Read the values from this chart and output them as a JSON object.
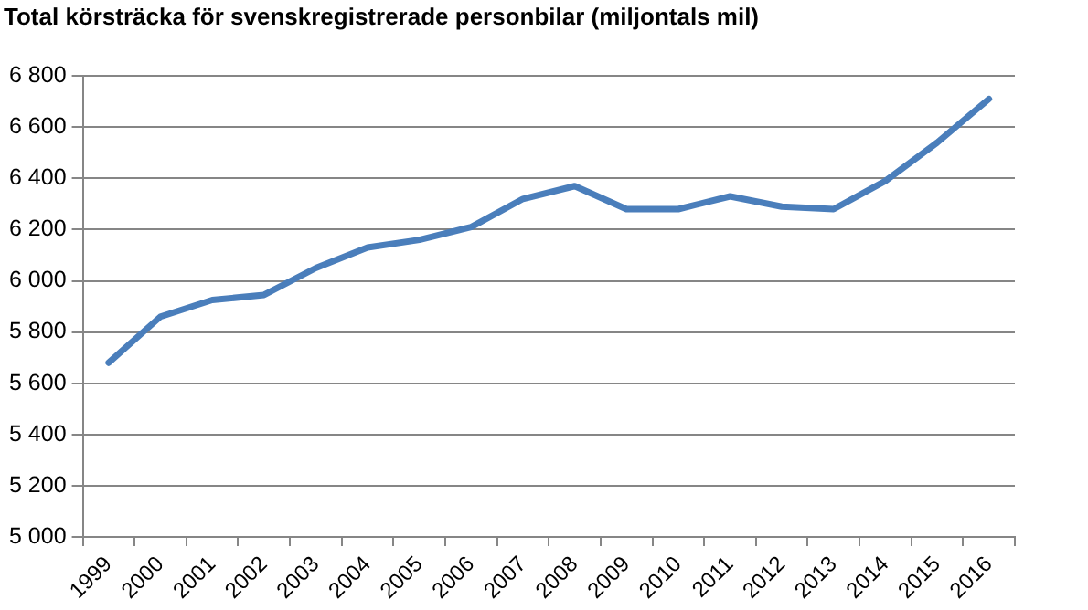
{
  "chart_data": {
    "type": "line",
    "title": "Total körsträcka för svenskregistrerade personbilar (miljontals mil)",
    "categories": [
      "1999",
      "2000",
      "2001",
      "2002",
      "2003",
      "2004",
      "2005",
      "2006",
      "2007",
      "2008",
      "2009",
      "2010",
      "2011",
      "2012",
      "2013",
      "2014",
      "2015",
      "2016"
    ],
    "series": [
      {
        "color": "#4a7ebb",
        "values": [
          5680,
          5860,
          5925,
          5945,
          6050,
          6130,
          6160,
          6210,
          6320,
          6370,
          6280,
          6280,
          6330,
          6290,
          6280,
          6390,
          6540,
          6710
        ]
      }
    ],
    "ylim": [
      5000,
      6800
    ],
    "yticks": [
      {
        "value": 5000,
        "label": "5 000"
      },
      {
        "value": 5200,
        "label": "5 200"
      },
      {
        "value": 5400,
        "label": "5 400"
      },
      {
        "value": 5600,
        "label": "5 600"
      },
      {
        "value": 5800,
        "label": "5 800"
      },
      {
        "value": 6000,
        "label": "6 000"
      },
      {
        "value": 6200,
        "label": "6 200"
      },
      {
        "value": 6400,
        "label": "6 400"
      },
      {
        "value": 6600,
        "label": "6 600"
      },
      {
        "value": 6800,
        "label": "6 800"
      }
    ],
    "grid": "y",
    "legend": false,
    "marker": "none",
    "line_style": "solid"
  }
}
